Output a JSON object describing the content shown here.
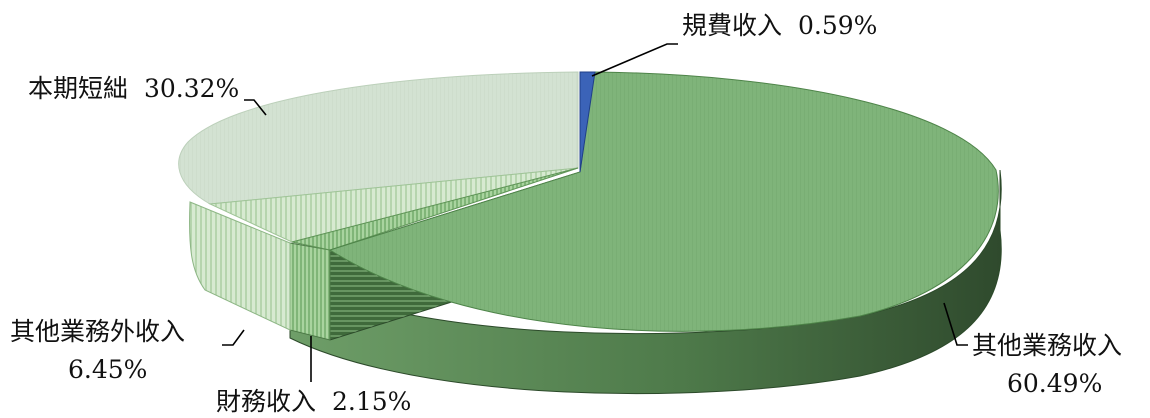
{
  "chart_data": {
    "type": "pie",
    "title": "",
    "style": "3d-exploded",
    "slices": [
      {
        "label": "規費收入",
        "value": 0.59,
        "value_text": "0.59%",
        "color": "#3b63b8"
      },
      {
        "label": "其他業務收入",
        "value": 60.49,
        "value_text": "60.49%",
        "color": "#7fb47a"
      },
      {
        "label": "財務收入",
        "value": 2.15,
        "value_text": "2.15%",
        "color": "#9fcf95"
      },
      {
        "label": "其他業務外收入",
        "value": 6.45,
        "value_text": "6.45%",
        "color": "#c3dfbd"
      },
      {
        "label": "本期短絀",
        "value": 30.32,
        "value_text": "30.32%",
        "color": "#d3e2d2"
      }
    ]
  }
}
